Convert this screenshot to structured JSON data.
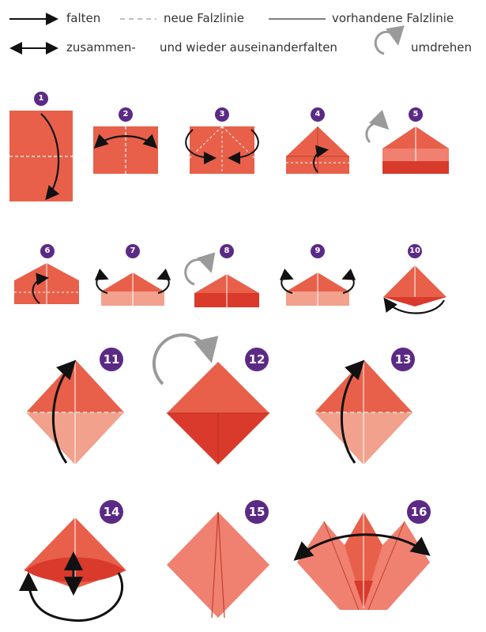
{
  "legend": {
    "fold_label": "falten",
    "new_crease_label": "neue Falzlinie",
    "existing_crease_label": "vorhandene Falzlinie",
    "fold_unfold_label_a": "zusammen-",
    "fold_unfold_label_b": "und wieder auseinanderfalten",
    "turn_over_label": "umdrehen"
  },
  "steps": [
    "1",
    "2",
    "3",
    "4",
    "5",
    "6",
    "7",
    "8",
    "9",
    "10",
    "11",
    "12",
    "13",
    "14",
    "15",
    "16"
  ],
  "colors": {
    "paper": "#e8604a",
    "paper_light": "#f1a18c",
    "paper_dark": "#d93a2c",
    "badge": "#5b2a86",
    "arrow": "#111111",
    "turn_arrow": "#9a9a9a"
  }
}
